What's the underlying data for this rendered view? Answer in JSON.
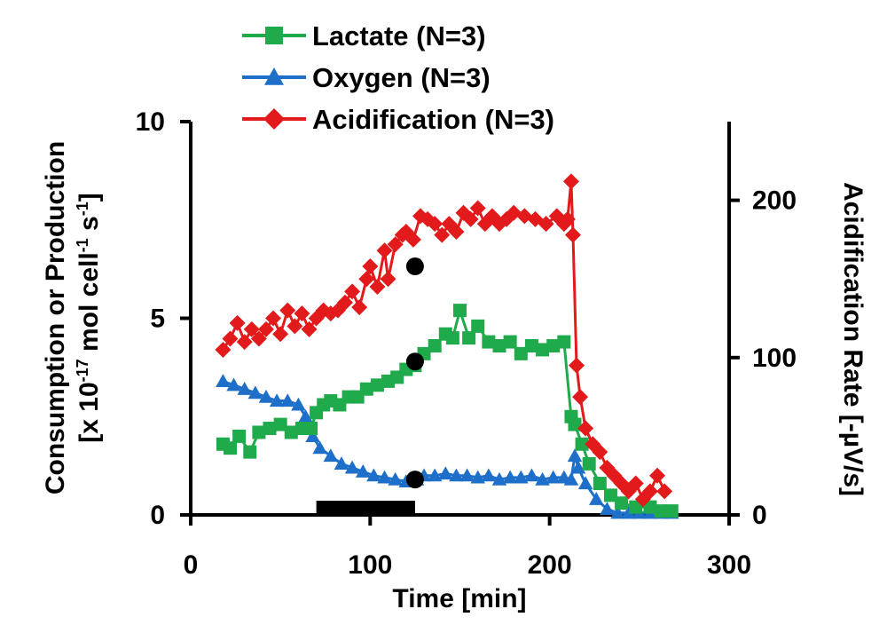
{
  "chart_data": {
    "type": "line",
    "title": "",
    "xlabel": "Time [min]",
    "ylabel_line1": "Consumption or Production",
    "ylabel_line2_prefix": "[x 10",
    "ylabel_line2_exp1": "-17",
    "ylabel_line2_mid": " mol cell",
    "ylabel_line2_exp2": "-1",
    "ylabel_line2_mid2": " s",
    "ylabel_line2_exp3": "-1",
    "ylabel_line2_suffix": "]",
    "y2label": "Acidification Rate [-µV/s]",
    "xlim": [
      0,
      300
    ],
    "ylim": [
      0,
      10
    ],
    "y2lim": [
      0,
      250
    ],
    "xticks": [
      "0",
      "100",
      "200",
      "300"
    ],
    "yticks": [
      "0",
      "5",
      "10"
    ],
    "y2ticks": [
      "0",
      "100",
      "200"
    ],
    "legend": "top-center",
    "series": [
      {
        "name": "Lactate (N=3)",
        "axis": "left",
        "color": "#1faa4b",
        "marker": "square",
        "x": [
          18,
          22,
          27,
          33,
          38,
          44,
          50,
          56,
          62,
          67,
          70,
          74,
          78,
          83,
          88,
          93,
          98,
          104,
          110,
          115,
          120,
          125,
          130,
          136,
          142,
          146,
          150,
          155,
          160,
          166,
          172,
          178,
          184,
          190,
          196,
          202,
          208,
          212,
          214,
          218,
          222,
          228,
          234,
          240,
          248,
          256,
          262,
          268
        ],
        "y": [
          1.8,
          1.7,
          2.0,
          1.6,
          2.1,
          2.2,
          2.3,
          2.1,
          2.2,
          2.2,
          2.6,
          2.8,
          2.9,
          2.8,
          3.0,
          3.0,
          3.2,
          3.3,
          3.4,
          3.5,
          3.7,
          3.8,
          4.1,
          4.3,
          4.6,
          4.5,
          5.2,
          4.5,
          4.8,
          4.4,
          4.3,
          4.4,
          4.1,
          4.3,
          4.2,
          4.3,
          4.4,
          2.5,
          2.3,
          1.8,
          1.3,
          0.8,
          0.5,
          0.3,
          0.2,
          0.2,
          0.1,
          0.1
        ]
      },
      {
        "name": "Oxygen (N=3)",
        "axis": "left",
        "color": "#1e6fc9",
        "marker": "triangle",
        "x": [
          18,
          24,
          30,
          36,
          42,
          48,
          54,
          60,
          64,
          68,
          72,
          78,
          84,
          90,
          96,
          102,
          108,
          114,
          120,
          126,
          130,
          136,
          142,
          148,
          154,
          160,
          166,
          172,
          178,
          184,
          190,
          196,
          202,
          208,
          212,
          214,
          216,
          220,
          226,
          232,
          238,
          244,
          250,
          256,
          262,
          268
        ],
        "y": [
          3.4,
          3.3,
          3.2,
          3.1,
          3.0,
          2.9,
          2.9,
          2.8,
          2.5,
          2.0,
          1.7,
          1.5,
          1.3,
          1.2,
          1.1,
          1.0,
          0.95,
          0.9,
          0.85,
          0.9,
          1.0,
          1.0,
          1.05,
          1.0,
          1.0,
          0.95,
          1.0,
          0.9,
          0.95,
          0.95,
          1.0,
          0.9,
          0.95,
          0.95,
          0.9,
          1.5,
          1.2,
          0.8,
          0.4,
          0.15,
          0.05,
          0.05,
          0.05,
          0.05,
          0.05,
          0.05
        ]
      },
      {
        "name": "Acidification (N=3)",
        "axis": "right",
        "color": "#e31a1c",
        "marker": "diamond",
        "x": [
          18,
          22,
          26,
          30,
          34,
          38,
          42,
          46,
          50,
          54,
          58,
          62,
          66,
          70,
          74,
          78,
          82,
          86,
          90,
          94,
          98,
          100,
          104,
          108,
          110,
          114,
          118,
          120,
          124,
          128,
          132,
          136,
          140,
          144,
          148,
          152,
          156,
          160,
          164,
          168,
          172,
          176,
          180,
          186,
          192,
          198,
          204,
          208,
          210,
          212,
          213,
          215,
          217,
          220,
          224,
          228,
          232,
          236,
          240,
          244,
          248,
          252,
          256,
          260,
          264
        ],
        "y": [
          105,
          112,
          122,
          110,
          118,
          112,
          118,
          125,
          115,
          130,
          120,
          128,
          118,
          125,
          130,
          128,
          130,
          135,
          142,
          132,
          150,
          158,
          145,
          168,
          150,
          172,
          178,
          180,
          175,
          190,
          188,
          185,
          178,
          185,
          180,
          192,
          188,
          195,
          185,
          190,
          185,
          188,
          192,
          190,
          188,
          185,
          190,
          185,
          188,
          212,
          178,
          95,
          75,
          55,
          45,
          40,
          30,
          25,
          20,
          15,
          20,
          10,
          15,
          25,
          15
        ]
      }
    ],
    "markers": [
      {
        "series": "Acidification (N=3)",
        "x": 125,
        "y": 158
      },
      {
        "series": "Lactate (N=3)",
        "x": 125,
        "y": 3.9
      },
      {
        "series": "Oxygen (N=3)",
        "x": 125,
        "y": 0.9
      }
    ],
    "annotations": [
      {
        "type": "bar",
        "x_start": 70,
        "x_end": 125,
        "color": "#000000"
      }
    ]
  }
}
